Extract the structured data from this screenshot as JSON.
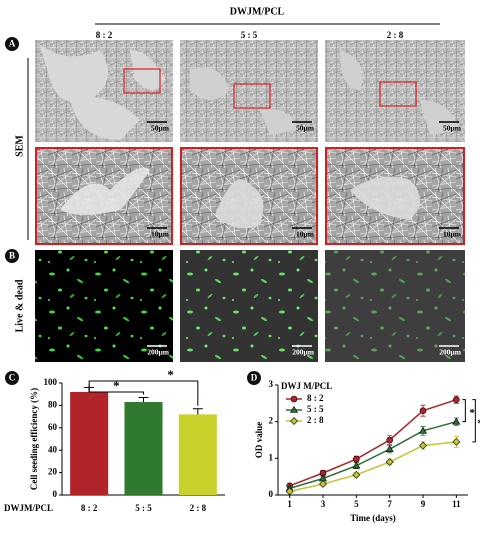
{
  "figure": {
    "header": "DWJM/PCL",
    "columns": [
      "8 : 2",
      "5 : 5",
      "2 : 8"
    ],
    "panels": [
      "A",
      "B",
      "C",
      "D"
    ],
    "rows": [
      "SEM",
      "Live & dead"
    ],
    "scale_bars": {
      "sem_low": [
        "50μm",
        "50μm",
        "50μm"
      ],
      "sem_high": [
        "10μm",
        "10μm",
        "10μm"
      ],
      "live_dead": [
        "200μm",
        "200μm",
        "200μm"
      ]
    }
  },
  "chart_data": [
    {
      "type": "bar",
      "ylabel": "Cell seeding efficiency (%)",
      "xlabel": "DWJM/PCL",
      "categories": [
        "8 : 2",
        "5 : 5",
        "2 : 8"
      ],
      "values": [
        92,
        83,
        72
      ],
      "errors": [
        4,
        4,
        5
      ],
      "colors": [
        "#b0242a",
        "#2f7a2f",
        "#c9d12c"
      ],
      "ylim": [
        0,
        100
      ],
      "yticks": [
        0,
        20,
        40,
        60,
        80,
        100
      ],
      "annotations": [
        "*",
        "*"
      ]
    },
    {
      "type": "line",
      "xlabel": "Time (days)",
      "ylabel": "OD value",
      "legend_title": "DWJ M/PCL",
      "legend": "upper left",
      "x": [
        1,
        3,
        5,
        7,
        9,
        11
      ],
      "xlim": [
        0.3,
        11.7
      ],
      "xticks": [
        1,
        3,
        5,
        7,
        9,
        11
      ],
      "ylim": [
        0,
        3
      ],
      "yticks": [
        0,
        1,
        2,
        3
      ],
      "series": [
        {
          "name": "8 : 2",
          "color": "#b0242a",
          "marker": "circle",
          "values": [
            0.25,
            0.6,
            0.98,
            1.5,
            2.3,
            2.6
          ],
          "errors": [
            0.05,
            0.07,
            0.08,
            0.12,
            0.15,
            0.1
          ]
        },
        {
          "name": "5 : 5",
          "color": "#2f6e3a",
          "marker": "triangle",
          "values": [
            0.18,
            0.45,
            0.8,
            1.25,
            1.75,
            2.0
          ],
          "errors": [
            0.04,
            0.06,
            0.08,
            0.1,
            0.12,
            0.1
          ]
        },
        {
          "name": "2 : 8",
          "color": "#c2c432",
          "marker": "diamond",
          "values": [
            0.1,
            0.3,
            0.55,
            0.9,
            1.35,
            1.45
          ],
          "errors": [
            0.03,
            0.05,
            0.06,
            0.08,
            0.1,
            0.15
          ]
        }
      ],
      "annotations": [
        "*",
        "*"
      ]
    }
  ]
}
